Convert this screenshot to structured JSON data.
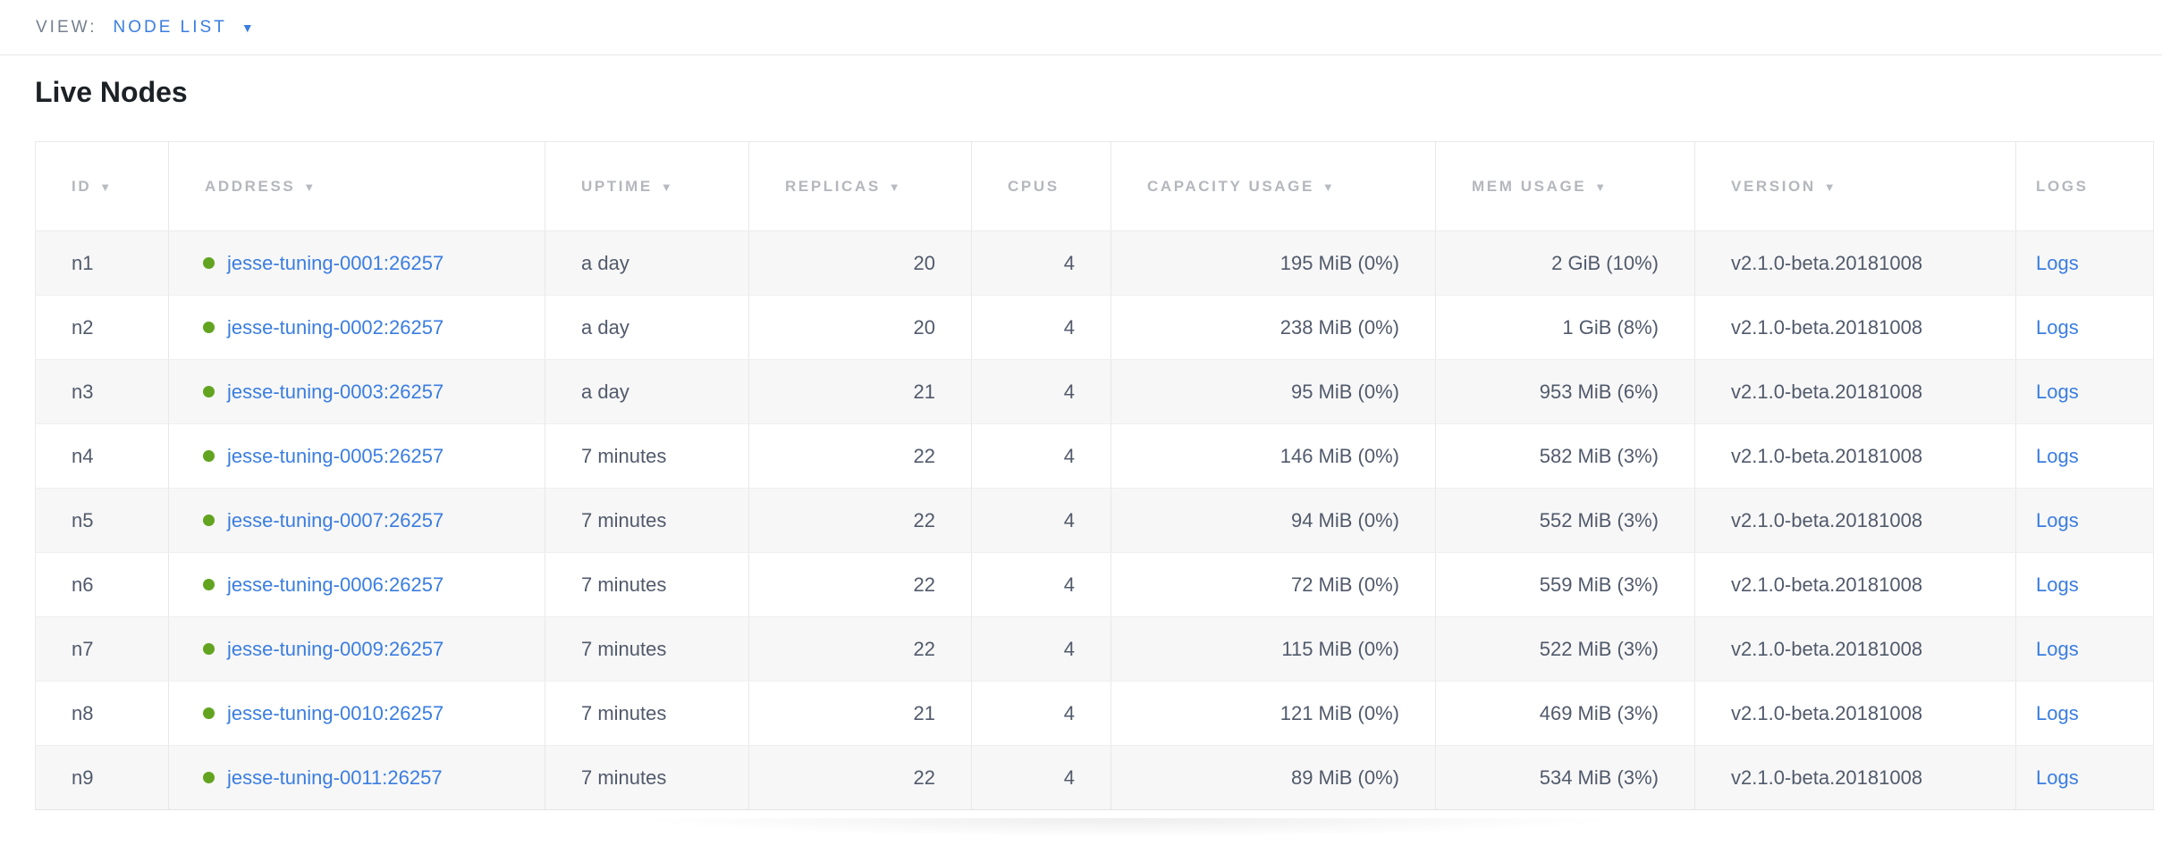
{
  "view_bar": {
    "label": "VIEW:",
    "selected": "NODE LIST",
    "caret_icon": "▼"
  },
  "page": {
    "title": "Live Nodes"
  },
  "colors": {
    "accent_blue": "#3a7de1",
    "healthy_green": "#62a420",
    "header_gray": "#b4b7bc",
    "cell_text": "#515a6b",
    "row_stripe": "#f7f7f7"
  },
  "table": {
    "sort_icon": "▼",
    "logs_label": "Logs",
    "columns": [
      {
        "key": "id",
        "label": "ID",
        "sortable": true,
        "align": "left"
      },
      {
        "key": "address",
        "label": "ADDRESS",
        "sortable": true,
        "align": "left"
      },
      {
        "key": "uptime",
        "label": "UPTIME",
        "sortable": true,
        "align": "left"
      },
      {
        "key": "replicas",
        "label": "REPLICAS",
        "sortable": true,
        "align": "right"
      },
      {
        "key": "cpus",
        "label": "CPUS",
        "sortable": false,
        "align": "right"
      },
      {
        "key": "capacity",
        "label": "CAPACITY USAGE",
        "sortable": true,
        "align": "right"
      },
      {
        "key": "mem",
        "label": "MEM USAGE",
        "sortable": true,
        "align": "right"
      },
      {
        "key": "version",
        "label": "VERSION",
        "sortable": true,
        "align": "left"
      },
      {
        "key": "logs",
        "label": "LOGS",
        "sortable": false,
        "align": "left"
      }
    ],
    "rows": [
      {
        "id": "n1",
        "address": "jesse-tuning-0001:26257",
        "status": "healthy",
        "uptime": "a day",
        "replicas": "20",
        "cpus": "4",
        "capacity": "195 MiB (0%)",
        "mem": "2 GiB (10%)",
        "version": "v2.1.0-beta.20181008"
      },
      {
        "id": "n2",
        "address": "jesse-tuning-0002:26257",
        "status": "healthy",
        "uptime": "a day",
        "replicas": "20",
        "cpus": "4",
        "capacity": "238 MiB (0%)",
        "mem": "1 GiB (8%)",
        "version": "v2.1.0-beta.20181008"
      },
      {
        "id": "n3",
        "address": "jesse-tuning-0003:26257",
        "status": "healthy",
        "uptime": "a day",
        "replicas": "21",
        "cpus": "4",
        "capacity": "95 MiB (0%)",
        "mem": "953 MiB (6%)",
        "version": "v2.1.0-beta.20181008"
      },
      {
        "id": "n4",
        "address": "jesse-tuning-0005:26257",
        "status": "healthy",
        "uptime": "7 minutes",
        "replicas": "22",
        "cpus": "4",
        "capacity": "146 MiB (0%)",
        "mem": "582 MiB (3%)",
        "version": "v2.1.0-beta.20181008"
      },
      {
        "id": "n5",
        "address": "jesse-tuning-0007:26257",
        "status": "healthy",
        "uptime": "7 minutes",
        "replicas": "22",
        "cpus": "4",
        "capacity": "94 MiB (0%)",
        "mem": "552 MiB (3%)",
        "version": "v2.1.0-beta.20181008"
      },
      {
        "id": "n6",
        "address": "jesse-tuning-0006:26257",
        "status": "healthy",
        "uptime": "7 minutes",
        "replicas": "22",
        "cpus": "4",
        "capacity": "72 MiB (0%)",
        "mem": "559 MiB (3%)",
        "version": "v2.1.0-beta.20181008"
      },
      {
        "id": "n7",
        "address": "jesse-tuning-0009:26257",
        "status": "healthy",
        "uptime": "7 minutes",
        "replicas": "22",
        "cpus": "4",
        "capacity": "115 MiB (0%)",
        "mem": "522 MiB (3%)",
        "version": "v2.1.0-beta.20181008"
      },
      {
        "id": "n8",
        "address": "jesse-tuning-0010:26257",
        "status": "healthy",
        "uptime": "7 minutes",
        "replicas": "21",
        "cpus": "4",
        "capacity": "121 MiB (0%)",
        "mem": "469 MiB (3%)",
        "version": "v2.1.0-beta.20181008"
      },
      {
        "id": "n9",
        "address": "jesse-tuning-0011:26257",
        "status": "healthy",
        "uptime": "7 minutes",
        "replicas": "22",
        "cpus": "4",
        "capacity": "89 MiB (0%)",
        "mem": "534 MiB (3%)",
        "version": "v2.1.0-beta.20181008"
      }
    ]
  }
}
